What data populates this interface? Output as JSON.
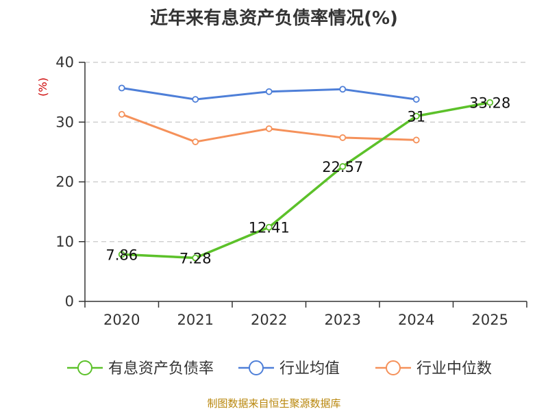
{
  "chart_data": {
    "type": "line",
    "title": "近年来有息资产负债率情况(%)",
    "ylabel": "(%)",
    "categories": [
      "2020",
      "2021",
      "2022",
      "2023",
      "2024",
      "2025"
    ],
    "ylim": [
      0,
      40
    ],
    "yticks": [
      0,
      10,
      20,
      30,
      40
    ],
    "grid": true,
    "legend_position": "bottom",
    "series": [
      {
        "name": "有息资产负债率",
        "color": "#5cc12a",
        "values": [
          7.86,
          7.28,
          12.41,
          22.57,
          31,
          33.28
        ],
        "labels": [
          "7.86",
          "7.28",
          "12.41",
          "22.57",
          "31",
          "33.28"
        ]
      },
      {
        "name": "行业均值",
        "color": "#4e7fd8",
        "values": [
          35.7,
          33.8,
          35.1,
          35.5,
          33.8,
          null
        ]
      },
      {
        "name": "行业中位数",
        "color": "#f5915a",
        "values": [
          31.3,
          26.7,
          28.9,
          27.4,
          27.0,
          null
        ]
      }
    ]
  },
  "source": "制图数据来自恒生聚源数据库"
}
